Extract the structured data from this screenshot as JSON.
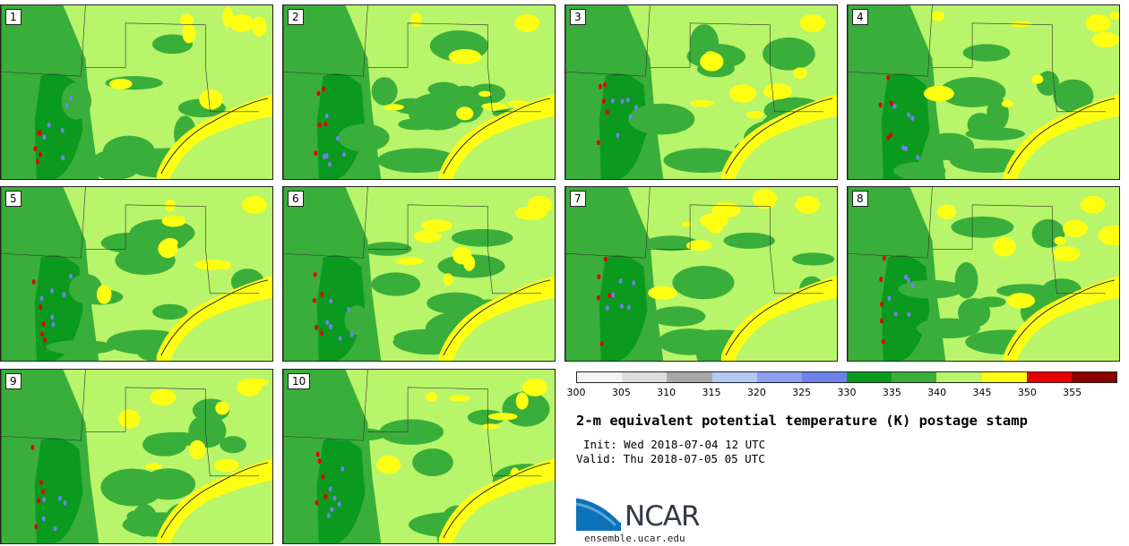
{
  "panels": [
    {
      "label": "1"
    },
    {
      "label": "2"
    },
    {
      "label": "3"
    },
    {
      "label": "4"
    },
    {
      "label": "5"
    },
    {
      "label": "6"
    },
    {
      "label": "7"
    },
    {
      "label": "8"
    },
    {
      "label": "9"
    },
    {
      "label": "10"
    }
  ],
  "colorbar": {
    "ticks": [
      "300",
      "305",
      "310",
      "315",
      "320",
      "325",
      "330",
      "335",
      "340",
      "345",
      "350",
      "355"
    ],
    "colors": [
      "#f4f4f4",
      "#dedede",
      "#a8a8a8",
      "#b4c8f4",
      "#8ca0f0",
      "#6e82ec",
      "#0a9a1e",
      "#3aae3a",
      "#b8f56a",
      "#ffff14",
      "#e60000",
      "#8c0000"
    ]
  },
  "title": "2-m equivalent potential temperature (K) postage stamp",
  "init": "Init: Wed 2018-07-04 12 UTC",
  "valid": "Valid: Thu 2018-07-05 05 UTC",
  "logo": {
    "text": "NCAR",
    "site": "ensemble.ucar.edu"
  },
  "map_colors": {
    "base": "#b8f56a",
    "medium": "#3aae3a",
    "dark": "#0a9a1e",
    "warm": "#ffff14",
    "hot": "#e60000",
    "cool": "#6e82ec"
  }
}
